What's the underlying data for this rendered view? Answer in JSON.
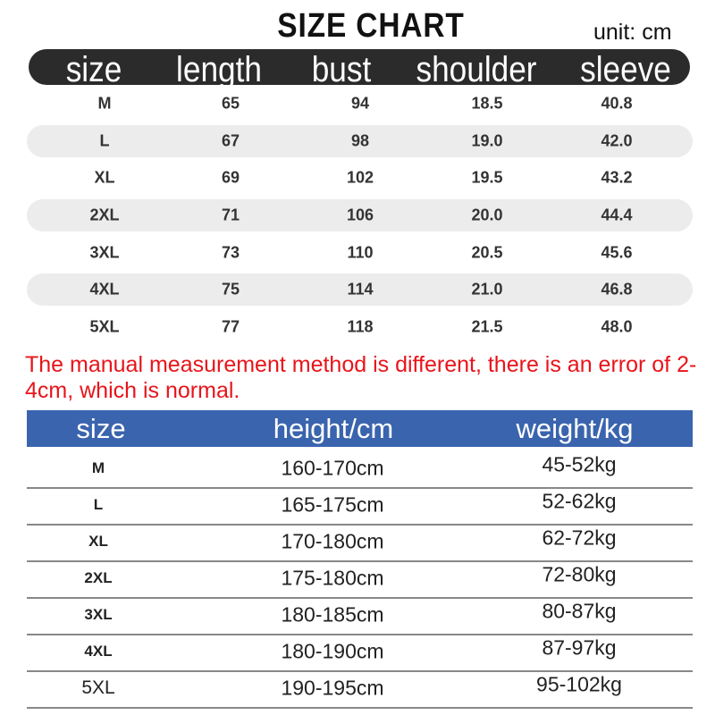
{
  "title": "SIZE  CHART",
  "unit": "unit: cm",
  "top_table": {
    "headers": [
      "size",
      "length",
      "bust",
      "shoulder",
      "sleeve"
    ],
    "rows": [
      [
        "M",
        "65",
        "94",
        "18.5",
        "40.8"
      ],
      [
        "L",
        "67",
        "98",
        "19.0",
        "42.0"
      ],
      [
        "XL",
        "69",
        "102",
        "19.5",
        "43.2"
      ],
      [
        "2XL",
        "71",
        "106",
        "20.0",
        "44.4"
      ],
      [
        "3XL",
        "73",
        "110",
        "20.5",
        "45.6"
      ],
      [
        "4XL",
        "75",
        "114",
        "21.0",
        "46.8"
      ],
      [
        "5XL",
        "77",
        "118",
        "21.5",
        "48.0"
      ]
    ]
  },
  "note": "The manual measurement method is different, there is an error of 2-4cm, which is normal.",
  "note_color": "#e8141a",
  "bottom_table": {
    "header_color": "#3a64ad",
    "headers": [
      "size",
      "height/cm",
      "weight/kg"
    ],
    "rows": [
      [
        "M",
        "160-170cm",
        "45-52kg"
      ],
      [
        "L",
        "165-175cm",
        "52-62kg"
      ],
      [
        "XL",
        "170-180cm",
        "62-72kg"
      ],
      [
        "2XL",
        "175-180cm",
        "72-80kg"
      ],
      [
        "3XL",
        "180-185cm",
        "80-87kg"
      ],
      [
        "4XL",
        "180-190cm",
        "87-97kg"
      ],
      [
        "5XL",
        "190-195cm",
        "95-102kg"
      ]
    ]
  }
}
